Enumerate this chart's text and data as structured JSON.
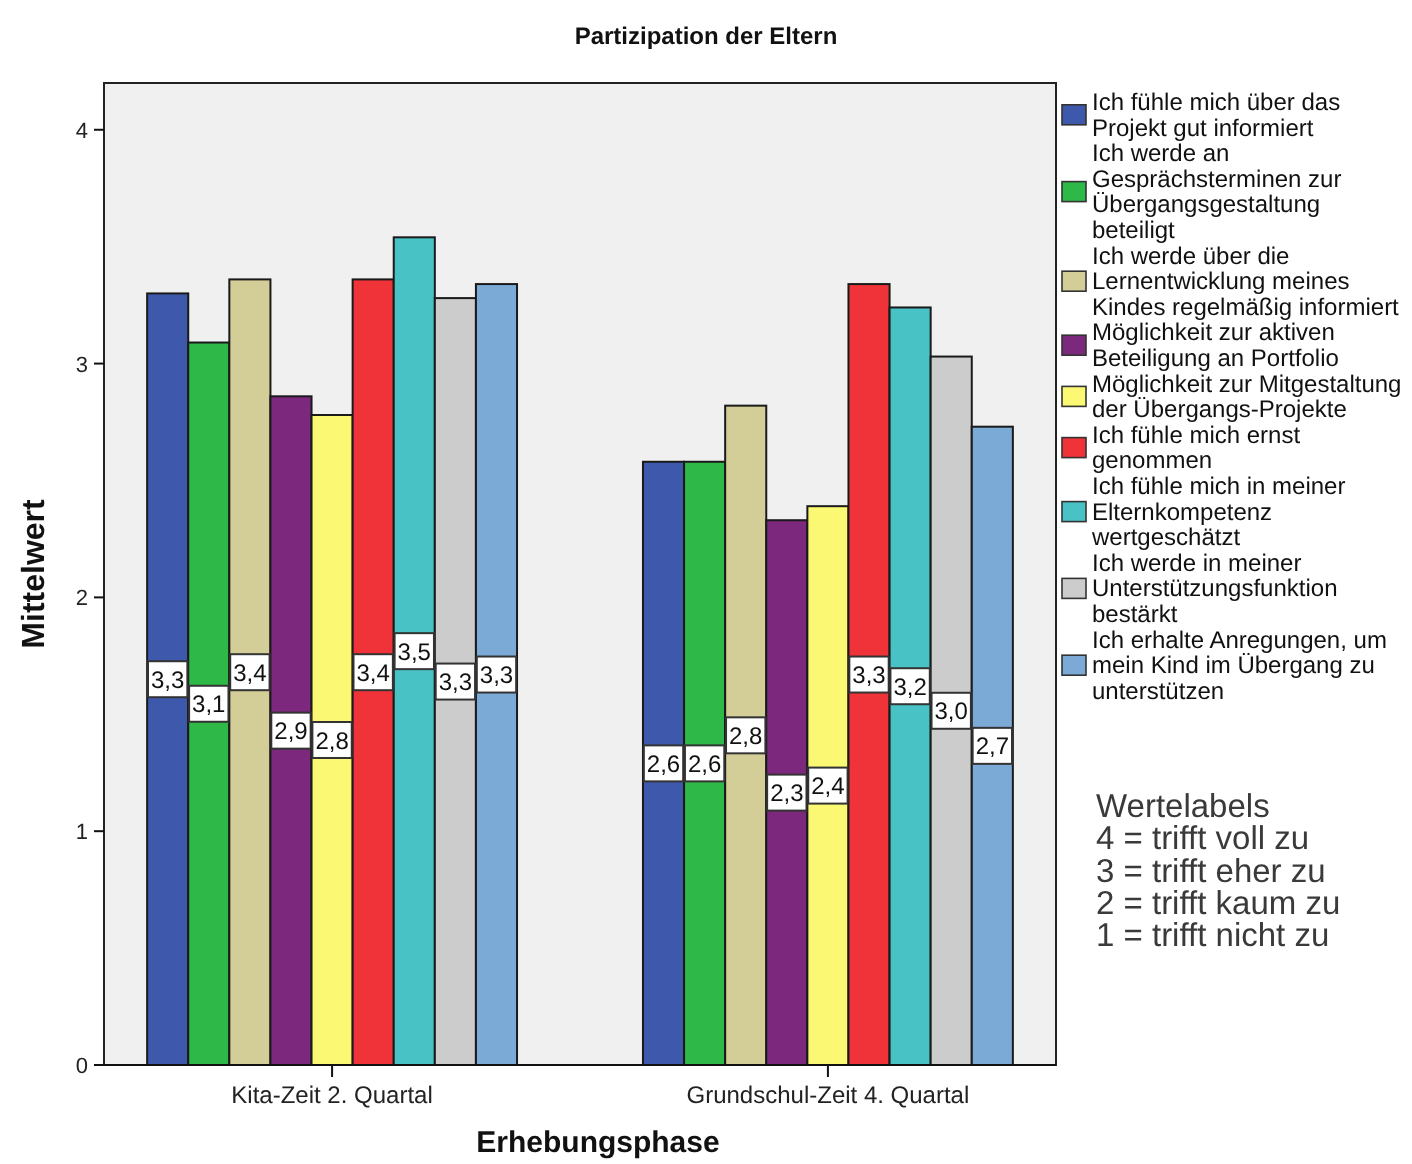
{
  "chart_data": {
    "type": "bar",
    "title": "Partizipation der Eltern",
    "xlabel": "Erhebungsphase",
    "ylabel": "Mittelwert",
    "categories": [
      "Kita-Zeit 2. Quartal",
      "Grundschul-Zeit 4. Quartal"
    ],
    "series": [
      {
        "name": "Ich fühle mich über das Projekt gut informiert",
        "color": "#3e58ac",
        "values": [
          3.3,
          2.58
        ],
        "value_labels": [
          "3,3",
          "2,6"
        ]
      },
      {
        "name": "Ich werde an Gesprächsterminen zur Übergangsgestaltung beteiligt",
        "color": "#2eb848",
        "values": [
          3.09,
          2.58
        ],
        "value_labels": [
          "3,1",
          "2,6"
        ]
      },
      {
        "name": "Ich werde über die Lernentwicklung meines Kindes regelmäßig informiert",
        "color": "#d3ce97",
        "values": [
          3.36,
          2.82
        ],
        "value_labels": [
          "3,4",
          "2,8"
        ]
      },
      {
        "name": "Möglichkeit zur aktiven Beteiligung an Portfolio",
        "color": "#7c287d",
        "values": [
          2.86,
          2.33
        ],
        "value_labels": [
          "2,9",
          "2,3"
        ]
      },
      {
        "name": "Möglichkeit zur Mitgestaltung der Übergangs-Projekte",
        "color": "#fbf873",
        "values": [
          2.78,
          2.39
        ],
        "value_labels": [
          "2,8",
          "2,4"
        ]
      },
      {
        "name": "Ich fühle mich ernst genommen",
        "color": "#ef3338",
        "values": [
          3.36,
          3.34
        ],
        "value_labels": [
          "3,4",
          "3,3"
        ]
      },
      {
        "name": "Ich fühle mich in meiner Elternkompetenz wertgeschätzt",
        "color": "#48c2c5",
        "values": [
          3.54,
          3.24
        ],
        "value_labels": [
          "3,5",
          "3,2"
        ]
      },
      {
        "name": "Ich werde in meiner Unterstützungsfunktion bestärkt",
        "color": "#cccccc",
        "values": [
          3.28,
          3.03
        ],
        "value_labels": [
          "3,3",
          "3,0"
        ]
      },
      {
        "name": "Ich erhalte Anregungen, um mein Kind im Übergang zu unterstützen",
        "color": "#7aaad5",
        "values": [
          3.34,
          2.73
        ],
        "value_labels": [
          "3,3",
          "2,7"
        ]
      }
    ],
    "ylim": [
      0,
      4.2
    ],
    "yticks": [
      0,
      1,
      2,
      3,
      4
    ],
    "legend": "right",
    "annotations": [
      "Wertelabels",
      "4 = trifft voll zu",
      "3 = trifft eher zu",
      "2 = trifft kaum zu",
      "1 = trifft nicht zu"
    ]
  }
}
